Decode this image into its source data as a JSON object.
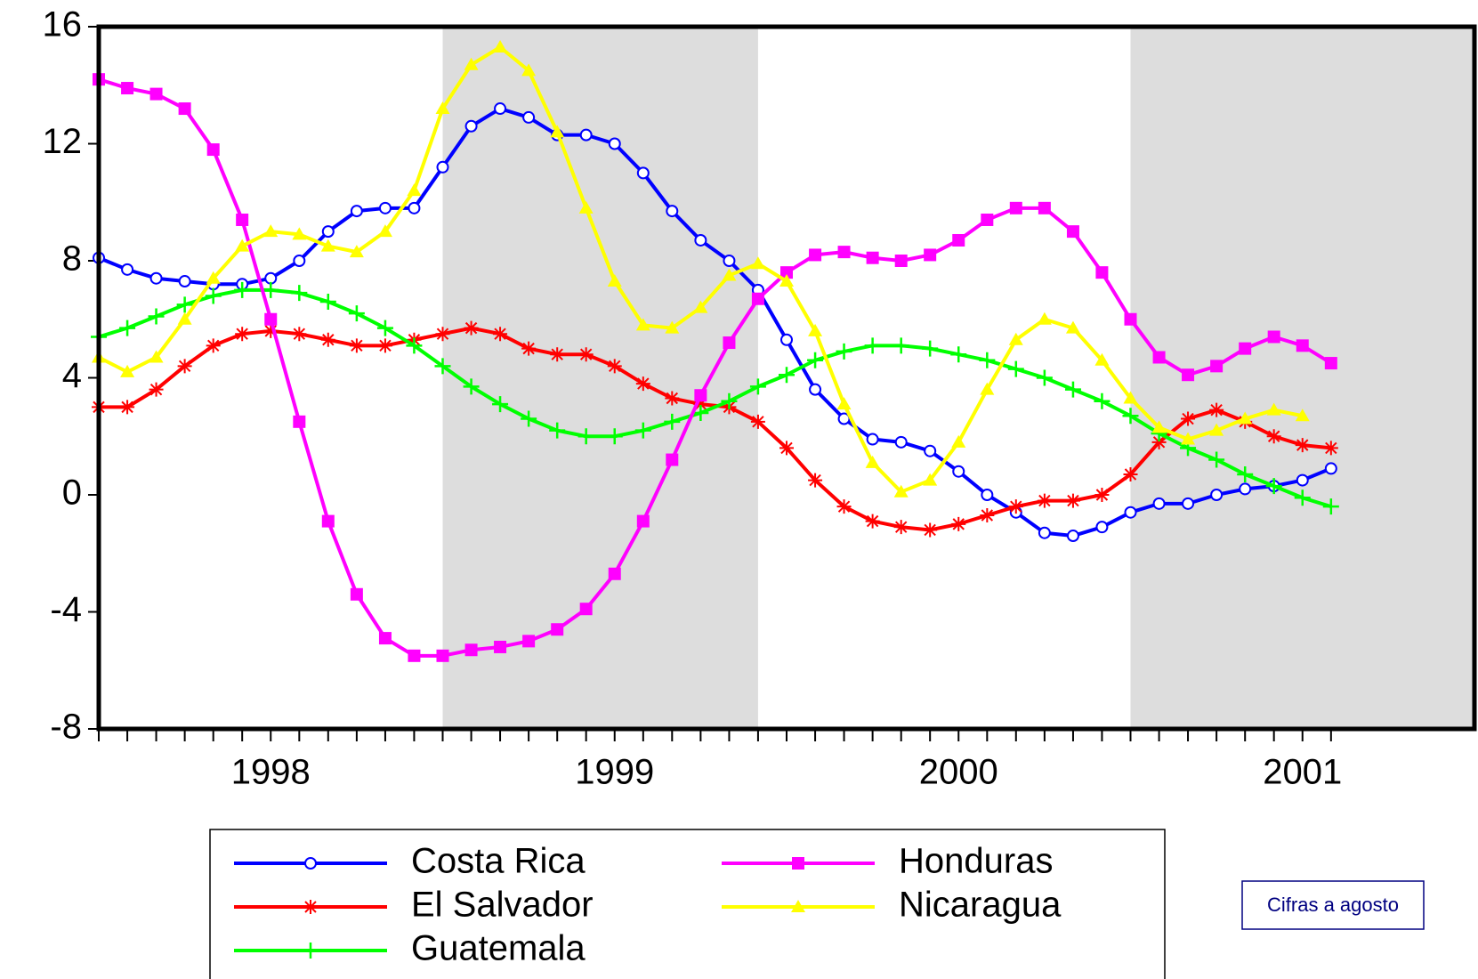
{
  "chart_data": {
    "type": "line",
    "x": [
      1998.0,
      1998.083,
      1998.167,
      1998.25,
      1998.333,
      1998.417,
      1998.5,
      1998.583,
      1998.667,
      1998.75,
      1998.833,
      1998.917,
      1999.0,
      1999.083,
      1999.167,
      1999.25,
      1999.333,
      1999.417,
      1999.5,
      1999.583,
      1999.667,
      1999.75,
      1999.833,
      1999.917,
      2000.0,
      2000.083,
      2000.167,
      2000.25,
      2000.333,
      2000.417,
      2000.5,
      2000.583,
      2000.667,
      2000.75,
      2000.833,
      2000.917,
      2001.0,
      2001.083,
      2001.167,
      2001.25,
      2001.333,
      2001.417,
      2001.5,
      2001.583
    ],
    "series": [
      {
        "name": "Costa Rica",
        "color": "#0000ff",
        "marker": "circle",
        "values": [
          8.1,
          7.7,
          7.4,
          7.3,
          7.2,
          7.2,
          7.4,
          8.0,
          9.0,
          9.7,
          9.8,
          9.8,
          11.2,
          12.6,
          13.2,
          12.9,
          12.3,
          12.3,
          12.0,
          11.0,
          9.7,
          8.7,
          8.0,
          7.0,
          5.3,
          3.6,
          2.6,
          1.9,
          1.8,
          1.5,
          0.8,
          0.0,
          -0.6,
          -1.3,
          -1.4,
          -1.1,
          -0.6,
          -0.3,
          -0.3,
          0.0,
          0.2,
          0.3,
          0.5,
          0.9
        ]
      },
      {
        "name": "El Salvador",
        "color": "#ff0000",
        "marker": "star",
        "values": [
          3.0,
          3.0,
          3.6,
          4.4,
          5.1,
          5.5,
          5.6,
          5.5,
          5.3,
          5.1,
          5.1,
          5.3,
          5.5,
          5.7,
          5.5,
          5.0,
          4.8,
          4.8,
          4.4,
          3.8,
          3.3,
          3.1,
          3.0,
          2.5,
          1.6,
          0.5,
          -0.4,
          -0.9,
          -1.1,
          -1.2,
          -1.0,
          -0.7,
          -0.4,
          -0.2,
          -0.2,
          0.0,
          0.7,
          1.8,
          2.6,
          2.9,
          2.5,
          2.0,
          1.7,
          1.6
        ]
      },
      {
        "name": "Guatemala",
        "color": "#00ff00",
        "marker": "plus",
        "values": [
          5.4,
          5.7,
          6.1,
          6.5,
          6.8,
          7.0,
          7.0,
          6.9,
          6.6,
          6.2,
          5.7,
          5.1,
          4.4,
          3.7,
          3.1,
          2.6,
          2.2,
          2.0,
          2.0,
          2.2,
          2.5,
          2.8,
          3.2,
          3.7,
          4.1,
          4.6,
          4.9,
          5.1,
          5.1,
          5.0,
          4.8,
          4.6,
          4.3,
          4.0,
          3.6,
          3.2,
          2.7,
          2.1,
          1.6,
          1.2,
          0.7,
          0.3,
          -0.1,
          -0.4
        ]
      },
      {
        "name": "Honduras",
        "color": "#ff00ff",
        "marker": "square",
        "values": [
          14.2,
          13.9,
          13.7,
          13.2,
          11.8,
          9.4,
          6.0,
          2.5,
          -0.9,
          -3.4,
          -4.9,
          -5.5,
          -5.5,
          -5.3,
          -5.2,
          -5.0,
          -4.6,
          -3.9,
          -2.7,
          -0.9,
          1.2,
          3.4,
          5.2,
          6.7,
          7.6,
          8.2,
          8.3,
          8.1,
          8.0,
          8.2,
          8.7,
          9.4,
          9.8,
          9.8,
          9.0,
          7.6,
          6.0,
          4.7,
          4.1,
          4.4,
          5.0,
          5.4,
          5.1,
          4.5
        ]
      },
      {
        "name": "Nicaragua",
        "color": "#ffff00",
        "marker": "triangle",
        "values": [
          4.7,
          4.2,
          4.7,
          6.0,
          7.4,
          8.5,
          9.0,
          8.9,
          8.5,
          8.3,
          9.0,
          10.4,
          13.2,
          14.7,
          15.3,
          14.5,
          12.4,
          9.8,
          7.3,
          5.8,
          5.7,
          6.4,
          7.5,
          7.9,
          7.3,
          5.6,
          3.1,
          1.1,
          0.1,
          0.5,
          1.8,
          3.6,
          5.3,
          6.0,
          5.7,
          4.6,
          3.3,
          2.3,
          1.9,
          2.2,
          2.6,
          2.9,
          2.7,
          null
        ]
      }
    ],
    "xlim": [
      1998,
      2002
    ],
    "xticks": [
      {
        "value": 1998.5,
        "label": "1998"
      },
      {
        "value": 1999.5,
        "label": "1999"
      },
      {
        "value": 2000.5,
        "label": "2000"
      },
      {
        "value": 2001.5,
        "label": "2001"
      }
    ],
    "ylim": [
      -8,
      16
    ],
    "yticks": [
      -8,
      -4,
      0,
      4,
      8,
      12,
      16
    ],
    "shaded": [
      [
        1999.0,
        1999.917
      ],
      [
        2001.0,
        2002.0
      ]
    ],
    "annotation": "Cifras a agosto"
  }
}
